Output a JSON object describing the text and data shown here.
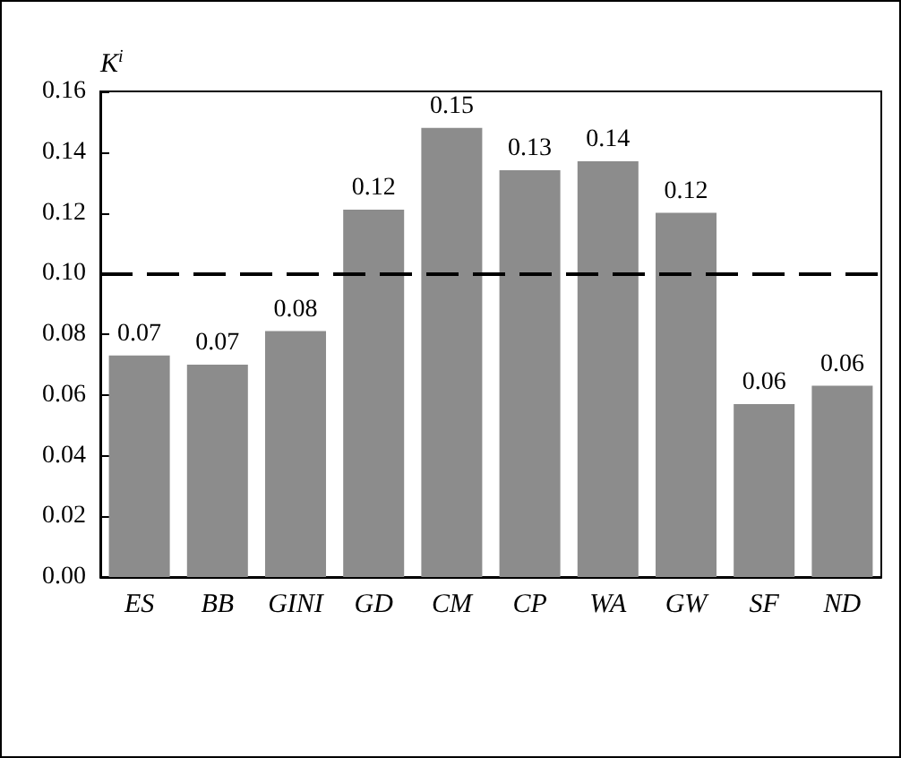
{
  "chart_data": {
    "type": "bar",
    "ylabel": "K$^{i}$",
    "categories": [
      "ES",
      "BB",
      "GINI",
      "GD",
      "CM",
      "CP",
      "WA",
      "GW",
      "SF",
      "ND"
    ],
    "values": [
      0.073,
      0.07,
      0.081,
      0.121,
      0.148,
      0.134,
      0.137,
      0.12,
      0.057,
      0.063
    ],
    "value_labels": [
      "0.07",
      "0.07",
      "0.08",
      "0.12",
      "0.15",
      "0.13",
      "0.14",
      "0.12",
      "0.06",
      "0.06"
    ],
    "color": "#8c8c8c",
    "ylim": [
      0,
      0.16
    ],
    "yticks": [
      {
        "value": 0,
        "label": "0.00"
      },
      {
        "value": 0.02,
        "label": "0.02"
      },
      {
        "value": 0.04,
        "label": "0.04"
      },
      {
        "value": 0.06,
        "label": "0.06"
      },
      {
        "value": 0.08,
        "label": "0.08"
      },
      {
        "value": 0.1,
        "label": "0.10"
      },
      {
        "value": 0.12,
        "label": "0.12"
      },
      {
        "value": 0.14,
        "label": "0.14"
      },
      {
        "value": 0.16,
        "label": "0.16"
      }
    ],
    "ref_lines": [
      {
        "axis": "y",
        "value": 0.1,
        "color": "#000000",
        "line_style": "dashed"
      }
    ],
    "grid": false
  }
}
